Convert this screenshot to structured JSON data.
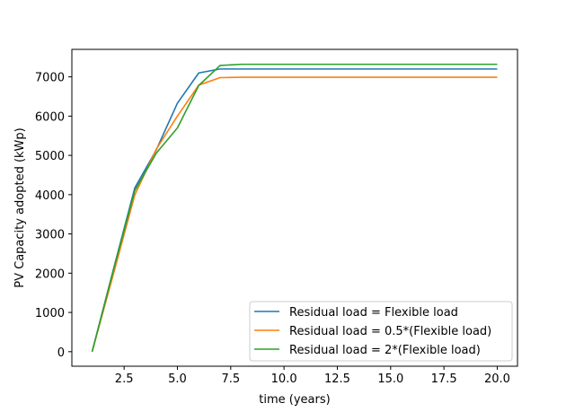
{
  "chart_data": {
    "type": "line",
    "title": "",
    "xlabel": "time (years)",
    "ylabel": "PV Capacity adopted (kWp)",
    "xlim": [
      0.05,
      20.95
    ],
    "ylim": [
      -370,
      7700
    ],
    "xticks": [
      2.5,
      5.0,
      7.5,
      10.0,
      12.5,
      15.0,
      17.5,
      20.0
    ],
    "xtick_labels": [
      "2.5",
      "5.0",
      "7.5",
      "10.0",
      "12.5",
      "15.0",
      "17.5",
      "20.0"
    ],
    "yticks": [
      0,
      1000,
      2000,
      3000,
      4000,
      5000,
      6000,
      7000
    ],
    "ytick_labels": [
      "0",
      "1000",
      "2000",
      "3000",
      "4000",
      "5000",
      "6000",
      "7000"
    ],
    "grid": false,
    "legend_position": "lower-right",
    "x": [
      1,
      2,
      3,
      4,
      5,
      6,
      7,
      8,
      9,
      10,
      11,
      12,
      13,
      14,
      15,
      16,
      17,
      18,
      19,
      20
    ],
    "series": [
      {
        "name": "Residual load = Flexible load",
        "color": "#1f77b4",
        "values": [
          0,
          2100,
          4170,
          5130,
          6330,
          7100,
          7200,
          7200,
          7200,
          7200,
          7200,
          7200,
          7200,
          7200,
          7200,
          7200,
          7200,
          7200,
          7200,
          7200
        ]
      },
      {
        "name": "Residual load = 0.5*(Flexible load)",
        "color": "#ff7f0e",
        "values": [
          0,
          1980,
          3990,
          5150,
          6000,
          6790,
          6980,
          6990,
          6990,
          6990,
          6990,
          6990,
          6990,
          6990,
          6990,
          6990,
          6990,
          6990,
          6990,
          6990
        ]
      },
      {
        "name": "Residual load = 2*(Flexible load)",
        "color": "#2ca02c",
        "values": [
          0,
          2080,
          4100,
          5050,
          5700,
          6780,
          7290,
          7320,
          7320,
          7320,
          7320,
          7320,
          7320,
          7320,
          7320,
          7320,
          7320,
          7320,
          7320,
          7320
        ]
      }
    ]
  }
}
